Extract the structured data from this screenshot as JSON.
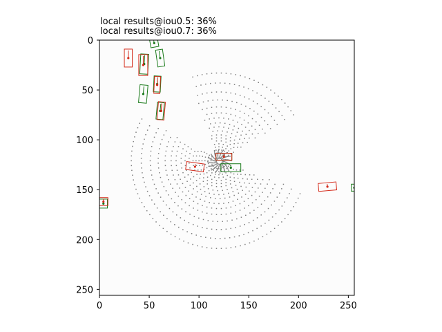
{
  "chart_data": {
    "type": "scatter",
    "title_lines": [
      "local results@iou0.5: 36%",
      "local results@iou0.7: 36%"
    ],
    "xlabel": "",
    "ylabel": "",
    "xlim": [
      0,
      256
    ],
    "ylim": [
      256,
      0
    ],
    "x_ticks": [
      0,
      50,
      100,
      150,
      200,
      250
    ],
    "y_ticks": [
      0,
      50,
      100,
      150,
      200,
      250
    ],
    "grid": false,
    "colors": {
      "ground_truth": "#1a7a1a",
      "prediction": "#d42a1a",
      "point_cloud": "#7f7f7f",
      "background": "#fcfcfc"
    },
    "ground_truth_boxes": [
      {
        "cx": 55,
        "cy": 3,
        "w": 8,
        "h": 8,
        "angle": -10
      },
      {
        "cx": 61,
        "cy": 18,
        "w": 7,
        "h": 17,
        "angle": -8
      },
      {
        "cx": 44,
        "cy": 54,
        "w": 8,
        "h": 18,
        "angle": 5
      },
      {
        "cx": 58,
        "cy": 44,
        "w": 7,
        "h": 16,
        "angle": 3
      },
      {
        "cx": 61,
        "cy": 71,
        "w": 7,
        "h": 17,
        "angle": 5
      },
      {
        "cx": 45,
        "cy": 24,
        "w": 8,
        "h": 20,
        "angle": 3
      },
      {
        "cx": 132,
        "cy": 128,
        "w": 20,
        "h": 8,
        "angle": 0
      },
      {
        "cx": 125,
        "cy": 117,
        "w": 16,
        "h": 7,
        "angle": 0
      },
      {
        "cx": 256,
        "cy": 148,
        "w": 6,
        "h": 7,
        "angle": 0
      },
      {
        "cx": 4,
        "cy": 164,
        "w": 8,
        "h": 9,
        "angle": 0
      }
    ],
    "predicted_boxes": [
      {
        "cx": 29,
        "cy": 18,
        "w": 8,
        "h": 18,
        "angle": 0
      },
      {
        "cx": 44,
        "cy": 25,
        "w": 9,
        "h": 21,
        "angle": 0
      },
      {
        "cx": 58,
        "cy": 45,
        "w": 6,
        "h": 17,
        "angle": 3
      },
      {
        "cx": 62,
        "cy": 71,
        "w": 7,
        "h": 18,
        "angle": 5
      },
      {
        "cx": 125,
        "cy": 117,
        "w": 16,
        "h": 7,
        "angle": 0
      },
      {
        "cx": 96,
        "cy": 127,
        "w": 18,
        "h": 8,
        "angle": 8
      },
      {
        "cx": 229,
        "cy": 147,
        "w": 18,
        "h": 8,
        "angle": -5
      },
      {
        "cx": 4,
        "cy": 162,
        "w": 9,
        "h": 8,
        "angle": 0
      }
    ],
    "point_cloud": {
      "center": [
        120,
        121
      ],
      "ring_radii": [
        8,
        11,
        14,
        17,
        20,
        23,
        26,
        30,
        34,
        38,
        43,
        48,
        54,
        61,
        69,
        78,
        88
      ],
      "visible_sectors_deg": [
        [
          20,
          210
        ],
        [
          250,
          330
        ]
      ]
    }
  }
}
